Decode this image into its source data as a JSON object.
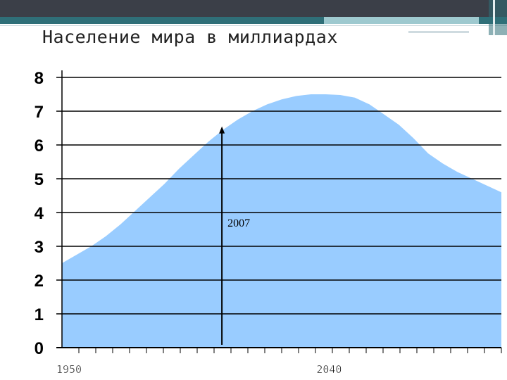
{
  "slide": {
    "title": "Население мира в миллиардах"
  },
  "chart_data": {
    "type": "area",
    "title": "Население мира в миллиардах",
    "xlabel": "",
    "ylabel": "",
    "ylim": [
      0,
      8
    ],
    "yticks": [
      0,
      1,
      2,
      3,
      4,
      5,
      6,
      7,
      8
    ],
    "xlim": [
      1950,
      2100
    ],
    "xtick_labels": [
      {
        "year": 1950,
        "label": "1950"
      },
      {
        "year": 2040,
        "label": "2040"
      }
    ],
    "grid": true,
    "series": [
      {
        "x": [
          1950,
          1955,
          1960,
          1965,
          1970,
          1975,
          1980,
          1985,
          1990,
          1995,
          2000,
          2005,
          2010,
          2015,
          2020,
          2025,
          2030,
          2035,
          2040,
          2045,
          2050,
          2055,
          2060,
          2065,
          2070,
          2075,
          2080,
          2085,
          2090,
          2095,
          2100
        ],
        "values": [
          2.5,
          2.75,
          3.0,
          3.3,
          3.65,
          4.05,
          4.45,
          4.85,
          5.3,
          5.7,
          6.1,
          6.45,
          6.75,
          7.0,
          7.2,
          7.35,
          7.45,
          7.5,
          7.5,
          7.48,
          7.4,
          7.2,
          6.9,
          6.6,
          6.2,
          5.75,
          5.45,
          5.2,
          5.0,
          4.8,
          4.6
        ],
        "color": "#99ccff"
      }
    ],
    "annotations": [
      {
        "text": "2007",
        "x": 2007,
        "y": 6.55,
        "type": "arrow"
      }
    ],
    "colors": {
      "area": "#99ccff",
      "grid": "#000000",
      "text": "#000000"
    }
  }
}
